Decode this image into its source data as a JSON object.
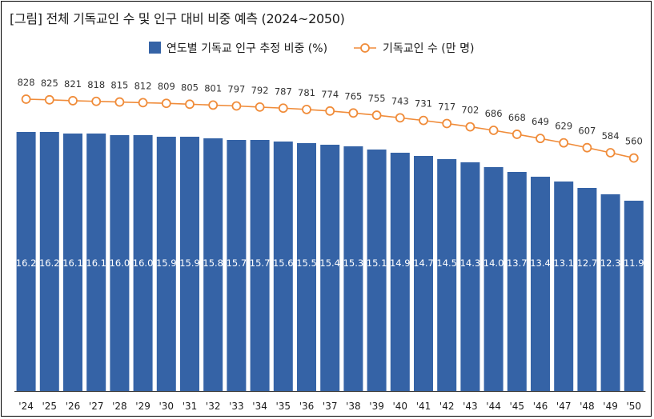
{
  "colors": {
    "bar": "#3563a6",
    "line": "#f08c3a",
    "marker_fill": "#ffffff",
    "axis": "#333333",
    "bar_label": "#ffffff",
    "line_label": "#333333"
  },
  "chart_data": {
    "type": "bar",
    "title": "[그림] 전체 기독교인 수 및 인구 대비 비중 예측 (2024~2050)",
    "categories": [
      "'24",
      "'25",
      "'26",
      "'27",
      "'28",
      "'29",
      "'30",
      "'31",
      "'32",
      "'33",
      "'34",
      "'35",
      "'36",
      "'37",
      "'38",
      "'39",
      "'40",
      "'41",
      "'42",
      "'43",
      "'44",
      "'45",
      "'46",
      "'47",
      "'48",
      "'49",
      "'50"
    ],
    "series": [
      {
        "name": "연도별 기독교 인구 추정 비중 (%)",
        "type": "bar",
        "values": [
          16.2,
          16.2,
          16.1,
          16.1,
          16.0,
          16.0,
          15.9,
          15.9,
          15.8,
          15.7,
          15.7,
          15.6,
          15.5,
          15.4,
          15.3,
          15.1,
          14.9,
          14.7,
          14.5,
          14.3,
          14.0,
          13.7,
          13.4,
          13.1,
          12.7,
          12.3,
          11.9
        ],
        "value_labels": [
          "16.2",
          "16.2",
          "16.1",
          "16.1",
          "16.0",
          "16.0",
          "15.9",
          "15.9",
          "15.8",
          "15.7",
          "15.7",
          "15.6",
          "15.5",
          "15.4",
          "15.3",
          "15.1",
          "14.9",
          "14.7",
          "14.5",
          "14.3",
          "14.0",
          "13.7",
          "13.4",
          "13.1",
          "12.7",
          "12.3",
          "11.9"
        ]
      },
      {
        "name": "기독교인 수 (만 명)",
        "type": "line",
        "values": [
          828,
          825,
          821,
          818,
          815,
          812,
          809,
          805,
          801,
          797,
          792,
          787,
          781,
          774,
          765,
          755,
          743,
          731,
          717,
          702,
          686,
          668,
          649,
          629,
          607,
          584,
          560
        ],
        "value_labels": [
          "828",
          "825",
          "821",
          "818",
          "815",
          "812",
          "809",
          "805",
          "801",
          "797",
          "792",
          "787",
          "781",
          "774",
          "765",
          "755",
          "743",
          "731",
          "717",
          "702",
          "686",
          "668",
          "649",
          "629",
          "607",
          "584",
          "560"
        ]
      }
    ],
    "legend": {
      "position": "top-center"
    },
    "grid": false
  }
}
